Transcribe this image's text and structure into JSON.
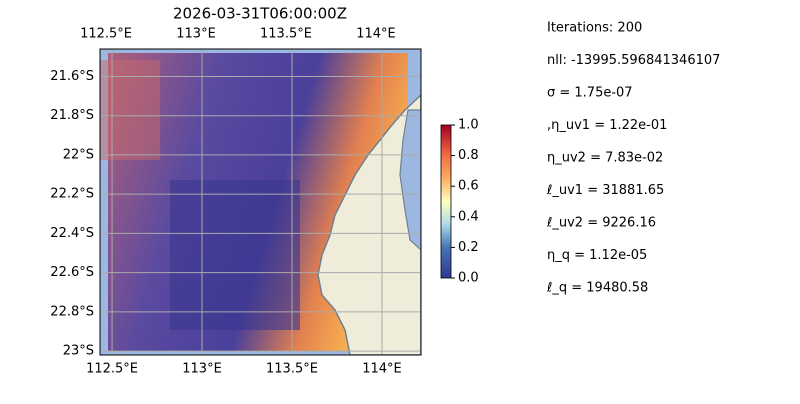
{
  "chart_data": {
    "type": "map",
    "title": "2026-03-31T06:00:00Z",
    "xlim": [
      112.433,
      114.217
    ],
    "ylim": [
      -23.02,
      -21.46
    ],
    "xticks": [
      {
        "value": 112.5,
        "label": "112.5°E"
      },
      {
        "value": 113,
        "label": "113°E"
      },
      {
        "value": 113.5,
        "label": "113.5°E"
      },
      {
        "value": 114,
        "label": "114°E"
      }
    ],
    "yticks": [
      {
        "value": -21.6,
        "label": "21.6°S"
      },
      {
        "value": -21.8,
        "label": "21.8°S"
      },
      {
        "value": -22,
        "label": "22°S"
      },
      {
        "value": -22.2,
        "label": "22.2°S"
      },
      {
        "value": -22.4,
        "label": "22.4°S"
      },
      {
        "value": -22.6,
        "label": "22.6°S"
      },
      {
        "value": -22.8,
        "label": "22.8°S"
      },
      {
        "value": -23,
        "label": "23°S"
      }
    ],
    "grid": true,
    "colorbar": {
      "lim": [
        0,
        1
      ],
      "ticks": [
        {
          "value": 0,
          "label": "0.0"
        },
        {
          "value": 0.2,
          "label": "0.2"
        },
        {
          "value": 0.4,
          "label": "0.4"
        },
        {
          "value": 0.6,
          "label": "0.6"
        },
        {
          "value": 0.8,
          "label": "0.8"
        },
        {
          "value": 1,
          "label": "1.0"
        }
      ]
    },
    "annotations": [
      "Iterations: 200",
      "nll: -13995.596841346107",
      "σ = 1.75e-07",
      ",η_uv1 = 1.22e-01",
      "η_uv2 = 7.83e-02",
      "ℓ_uv1 = 31881.65",
      "ℓ_uv2 = 9226.16",
      "η_q = 1.12e-05",
      "ℓ_q = 19480.58"
    ]
  }
}
